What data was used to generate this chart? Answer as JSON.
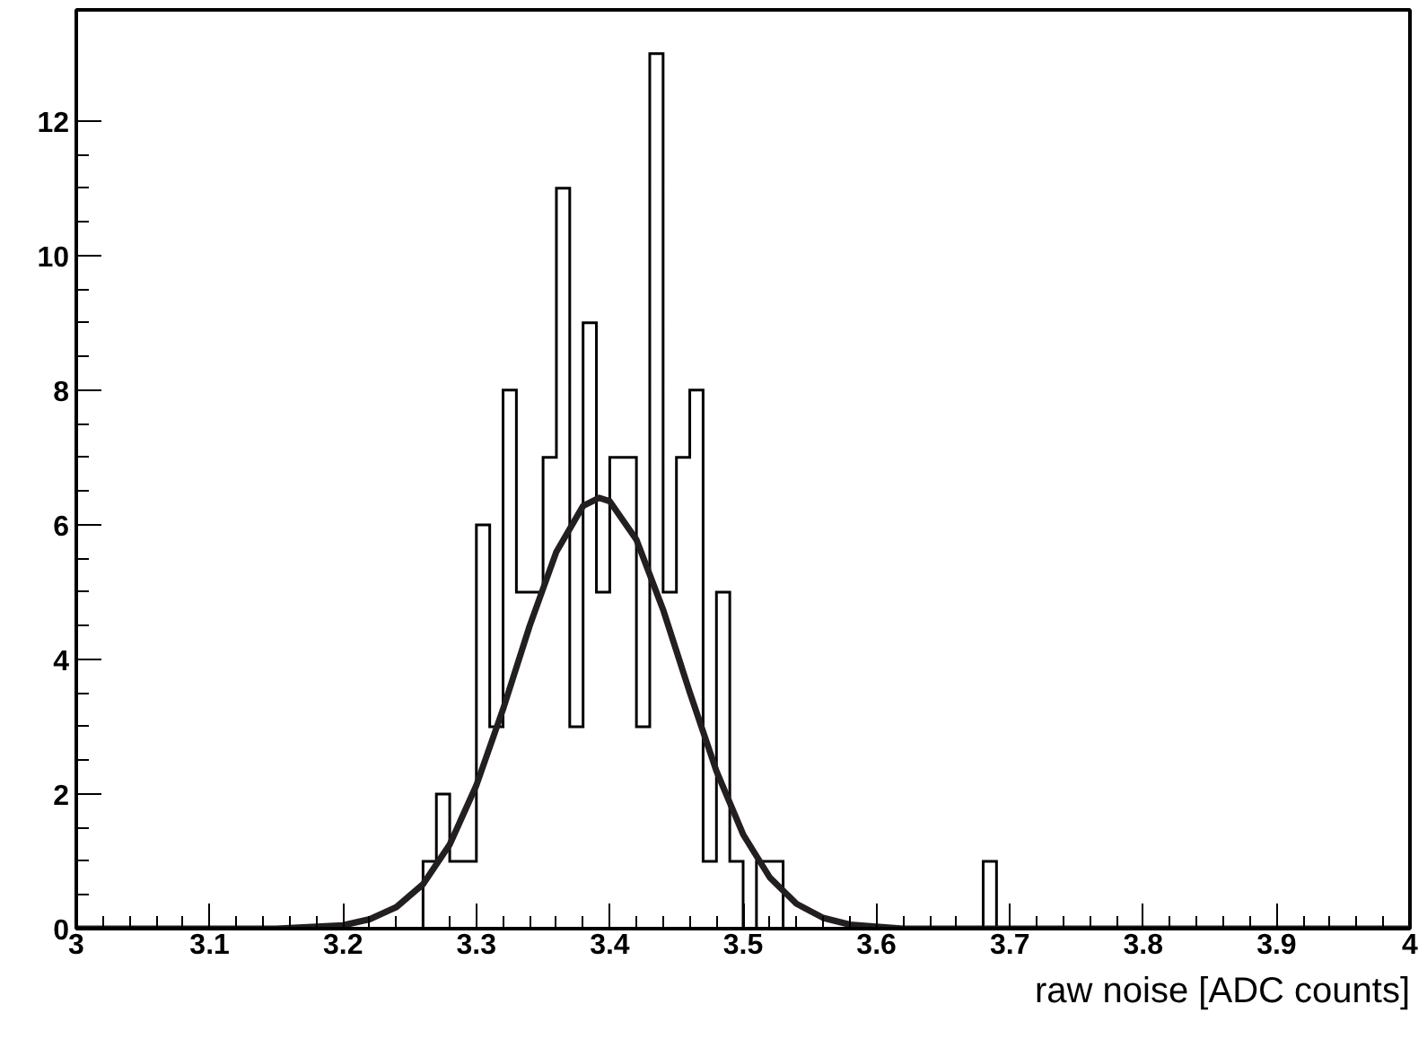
{
  "chart_data": {
    "type": "histogram",
    "xlabel": "raw noise [ADC counts]",
    "xlim": [
      3,
      4
    ],
    "ylim": [
      0,
      13.65
    ],
    "xticks": [
      3,
      3.1,
      3.2,
      3.3,
      3.4,
      3.5,
      3.6,
      3.7,
      3.8,
      3.9,
      4
    ],
    "yticks": [
      0,
      2,
      4,
      6,
      8,
      10,
      12
    ],
    "grid": false,
    "series": [
      {
        "color": "#000000",
        "bins": [
          3,
          3.01,
          3.02,
          3.03,
          3.04,
          3.05,
          3.06,
          3.07,
          3.08,
          3.09,
          3.1,
          3.11,
          3.12,
          3.13,
          3.14,
          3.15,
          3.16,
          3.17,
          3.18,
          3.19,
          3.2,
          3.21,
          3.22,
          3.23,
          3.24,
          3.25,
          3.26,
          3.27,
          3.28,
          3.29,
          3.3,
          3.31,
          3.32,
          3.33,
          3.34,
          3.35,
          3.36,
          3.37,
          3.38,
          3.39,
          3.4,
          3.41,
          3.42,
          3.43,
          3.44,
          3.45,
          3.46,
          3.47,
          3.48,
          3.49,
          3.5,
          3.51,
          3.52,
          3.53,
          3.54,
          3.55,
          3.56,
          3.57,
          3.58,
          3.59,
          3.6,
          3.61,
          3.62,
          3.63,
          3.64,
          3.65,
          3.66,
          3.67,
          3.68,
          3.69,
          3.7,
          3.71,
          3.72,
          3.73,
          3.74,
          3.75,
          3.76,
          3.77,
          3.78,
          3.79,
          3.8,
          3.81,
          3.82,
          3.83,
          3.84,
          3.85,
          3.86,
          3.87,
          3.88,
          3.89,
          3.9,
          3.91,
          3.92,
          3.93,
          3.94,
          3.95,
          3.96,
          3.97,
          3.98,
          3.99,
          4
        ],
        "values": [
          0,
          0,
          0,
          0,
          0,
          0,
          0,
          0,
          0,
          0,
          0,
          0,
          0,
          0,
          0,
          0,
          0,
          0,
          0,
          0,
          0,
          0,
          0,
          0,
          0,
          0,
          1,
          2,
          1,
          1,
          6,
          3,
          8,
          5,
          5,
          7,
          11,
          3,
          9,
          5,
          7,
          7,
          3,
          13,
          5,
          7,
          8,
          1,
          5,
          1,
          0,
          1,
          1,
          0,
          0,
          0,
          0,
          0,
          0,
          0,
          0,
          0,
          0,
          0,
          0,
          0,
          0,
          0,
          1,
          0,
          0,
          0,
          0,
          0,
          0,
          0,
          0,
          0,
          0,
          0,
          0,
          0,
          0,
          0,
          0,
          0,
          0,
          0,
          0,
          0,
          0,
          0,
          0,
          0,
          0,
          0,
          0,
          0,
          0,
          0
        ]
      },
      {
        "type": "line",
        "color": "#231f20",
        "line_style": "solid",
        "marker": "none",
        "x": [
          3,
          3.1,
          3.15,
          3.2,
          3.22,
          3.24,
          3.26,
          3.28,
          3.3,
          3.32,
          3.34,
          3.36,
          3.38,
          3.392,
          3.4,
          3.42,
          3.44,
          3.46,
          3.48,
          3.5,
          3.52,
          3.54,
          3.56,
          3.58,
          3.62,
          3.7,
          4
        ],
        "values": [
          0,
          0,
          0,
          0.05,
          0.14,
          0.32,
          0.66,
          1.25,
          2.13,
          3.26,
          4.5,
          5.6,
          6.28,
          6.4,
          6.35,
          5.78,
          4.74,
          3.51,
          2.34,
          1.4,
          0.76,
          0.37,
          0.16,
          0.06,
          0,
          0,
          0
        ]
      }
    ]
  }
}
